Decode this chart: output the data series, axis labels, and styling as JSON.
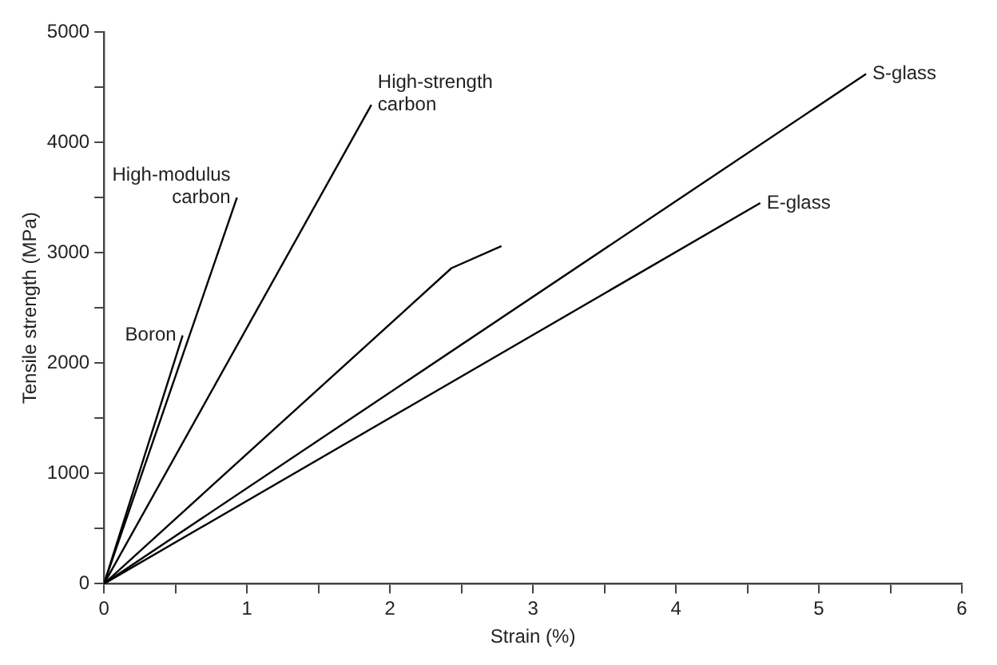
{
  "chart_data": {
    "type": "line",
    "xlabel": "Strain (%)",
    "ylabel": "Tensile strength (MPa)",
    "xlim": [
      0,
      6
    ],
    "ylim": [
      0,
      5000
    ],
    "xticks": [
      0,
      {
        "value": 0.5,
        "label": null
      },
      1,
      {
        "value": 1.5,
        "label": null
      },
      2,
      {
        "value": 2.5,
        "label": null
      },
      3,
      {
        "value": 3.5,
        "label": null
      },
      4,
      {
        "value": 4.5,
        "label": null
      },
      5,
      {
        "value": 5.5,
        "label": null
      },
      6
    ],
    "yticks": [
      0,
      {
        "value": 500,
        "label": null
      },
      1000,
      {
        "value": 1500,
        "label": null
      },
      2000,
      {
        "value": 2500,
        "label": null
      },
      3000,
      {
        "value": 3500,
        "label": null
      },
      4000,
      {
        "value": 4500,
        "label": null
      },
      5000
    ],
    "grid": false,
    "legend": false,
    "marker": "none",
    "line_style": "solid",
    "series": [
      {
        "name": "Boron",
        "color": "#000000",
        "x": [
          0,
          0.55
        ],
        "values": [
          0,
          2250
        ]
      },
      {
        "name": "High-modulus carbon",
        "color": "#000000",
        "x": [
          0,
          0.93
        ],
        "values": [
          0,
          3500
        ]
      },
      {
        "name": "High-strength carbon",
        "color": "#000000",
        "x": [
          0,
          1.87
        ],
        "values": [
          0,
          4340
        ]
      },
      {
        "color": "#000000",
        "x": [
          0,
          2.43,
          2.78
        ],
        "values": [
          0,
          2860,
          3060
        ]
      },
      {
        "name": "S-glass",
        "color": "#000000",
        "x": [
          0,
          5.33
        ],
        "values": [
          0,
          4620
        ]
      },
      {
        "name": "E-glass",
        "color": "#000000",
        "x": [
          0,
          4.59
        ],
        "values": [
          0,
          3450
        ]
      }
    ]
  }
}
